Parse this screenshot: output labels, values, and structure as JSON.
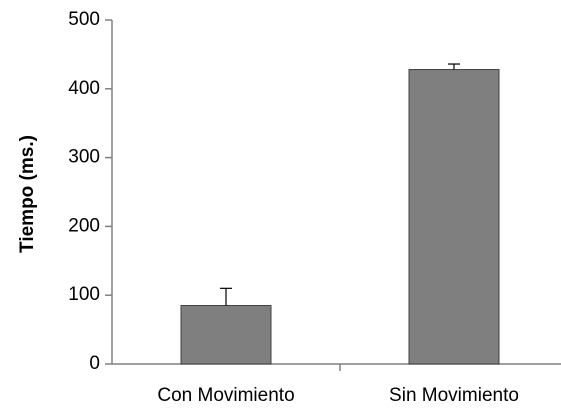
{
  "chart_data": {
    "type": "bar",
    "title": "",
    "xlabel": "",
    "ylabel": "Tiempo (ms.)",
    "categories": [
      "Con Movimiento",
      "Sin Movimiento"
    ],
    "values": [
      85,
      428
    ],
    "error_upper": [
      25,
      8
    ],
    "ylim": [
      0,
      500
    ],
    "yticks": [
      0,
      100,
      200,
      300,
      400,
      500
    ],
    "grid": false,
    "legend": "none",
    "bar_color": "#7f7f7f",
    "bar_edge_color": "#404040",
    "axis_color": "#808080"
  }
}
